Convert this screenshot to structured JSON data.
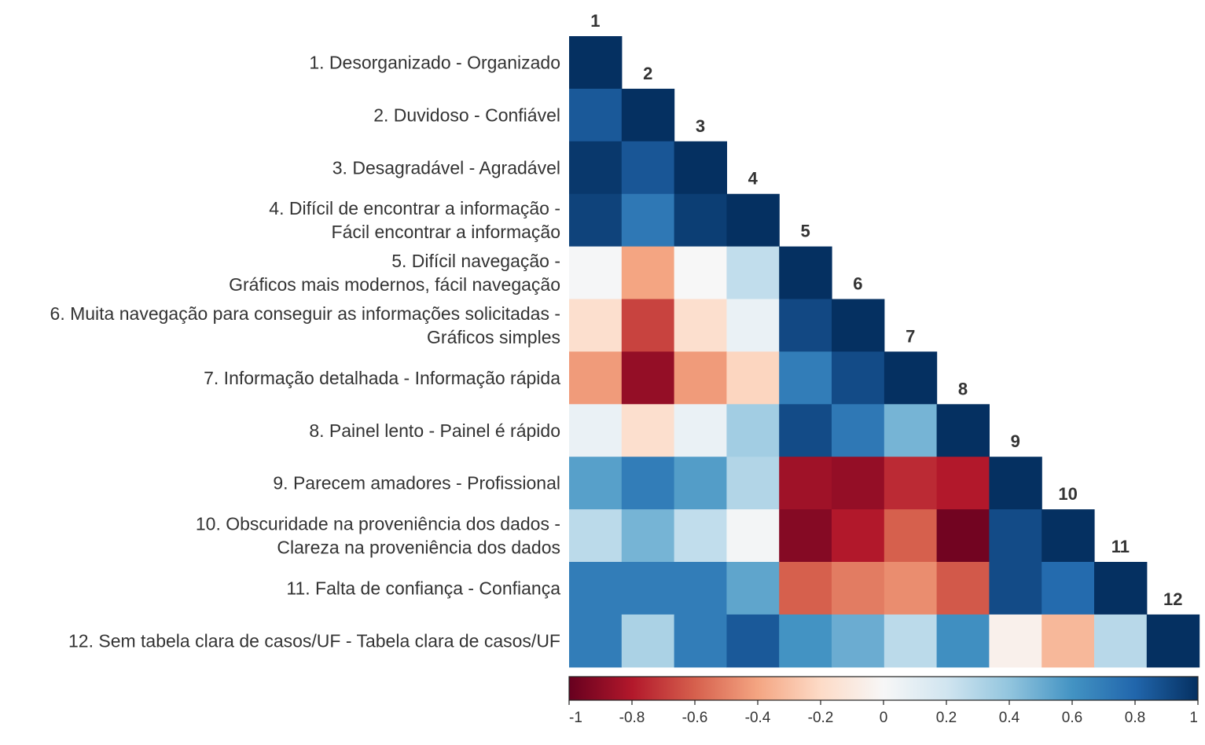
{
  "chart_data": {
    "type": "heatmap",
    "title": "",
    "column_labels": [
      "1",
      "2",
      "3",
      "4",
      "5",
      "6",
      "7",
      "8",
      "9",
      "10",
      "11",
      "12"
    ],
    "row_labels": [
      [
        "1. Desorganizado - Organizado"
      ],
      [
        "2. Duvidoso - Confiável"
      ],
      [
        "3. Desagradável - Agradável"
      ],
      [
        "4. Difícil de encontrar a informação -",
        "Fácil encontrar a informação"
      ],
      [
        "5. Difícil navegação -",
        "Gráficos mais modernos, fácil navegação"
      ],
      [
        "6. Muita navegação para conseguir as informações solicitadas -",
        "Gráficos simples"
      ],
      [
        "7. Informação detalhada - Informação rápida"
      ],
      [
        "8. Painel lento - Painel é rápido"
      ],
      [
        "9. Parecem amadores - Profissional"
      ],
      [
        "10. Obscuridade na proveniência dos dados -",
        "Clareza na proveniência dos dados"
      ],
      [
        "11. Falta de confiança - Confiança"
      ],
      [
        "12. Sem tabela clara de casos/UF - Tabela clara de casos/UF"
      ]
    ],
    "matrix": [
      [
        1.0
      ],
      [
        0.85,
        1.0
      ],
      [
        0.97,
        0.86,
        1.0
      ],
      [
        0.93,
        0.72,
        0.95,
        1.0
      ],
      [
        0.01,
        -0.4,
        0.0,
        0.25,
        1.0
      ],
      [
        -0.17,
        -0.68,
        -0.17,
        0.07,
        0.91,
        1.0
      ],
      [
        -0.43,
        -0.88,
        -0.43,
        -0.22,
        0.7,
        0.9,
        1.0
      ],
      [
        0.07,
        -0.17,
        0.07,
        0.35,
        0.9,
        0.72,
        0.47,
        1.0
      ],
      [
        0.55,
        0.7,
        0.56,
        0.3,
        -0.85,
        -0.88,
        -0.75,
        -0.8,
        1.0
      ],
      [
        0.27,
        0.47,
        0.25,
        0.02,
        -0.92,
        -0.8,
        -0.6,
        -0.97,
        0.9,
        1.0
      ],
      [
        0.7,
        0.7,
        0.7,
        0.53,
        -0.6,
        -0.52,
        -0.47,
        -0.62,
        0.9,
        0.78,
        1.0
      ],
      [
        0.7,
        0.32,
        0.7,
        0.85,
        0.6,
        0.5,
        0.27,
        0.62,
        -0.05,
        -0.33,
        0.28,
        1.0
      ]
    ],
    "colorbar": {
      "range": [
        -1,
        1
      ],
      "ticks": [
        "-1",
        "-0.8",
        "-0.6",
        "-0.4",
        "-0.2",
        "0",
        "0.2",
        "0.4",
        "0.6",
        "0.8",
        "1"
      ],
      "colors": {
        "neg_1": "#67001f",
        "neg_08": "#b2182b",
        "neg_06": "#d6604d",
        "neg_04": "#f4a582",
        "neg_02": "#fddbc7",
        "zero": "#f7f7f7",
        "pos_02": "#d1e5f0",
        "pos_04": "#92c5de",
        "pos_06": "#4393c3",
        "pos_08": "#2166ac",
        "pos_1": "#053061"
      }
    }
  }
}
